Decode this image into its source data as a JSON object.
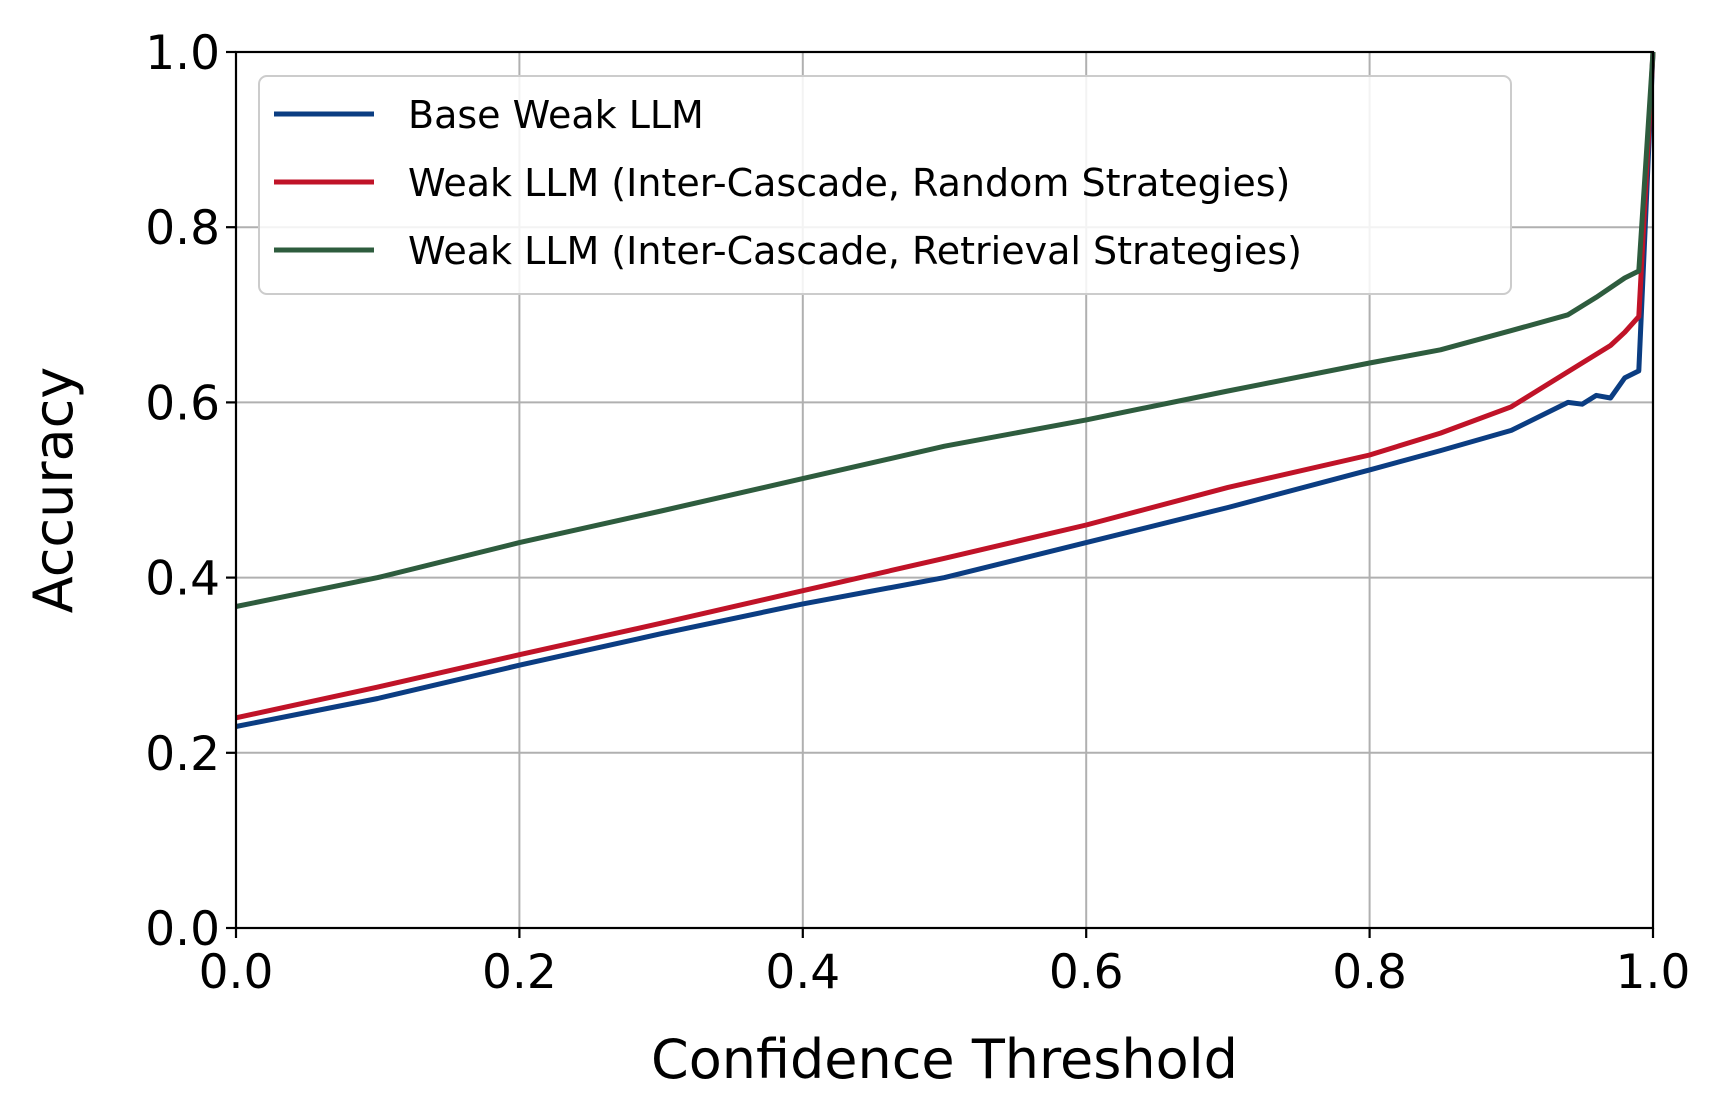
{
  "chart_data": {
    "type": "line",
    "xlabel": "Confidence Threshold",
    "ylabel": "Accuracy",
    "xlim": [
      0.0,
      1.0
    ],
    "ylim": [
      0.0,
      1.0
    ],
    "xticks": [
      "0.0",
      "0.2",
      "0.4",
      "0.6",
      "0.8",
      "1.0"
    ],
    "yticks": [
      "0.0",
      "0.2",
      "0.4",
      "0.6",
      "0.8",
      "1.0"
    ],
    "grid": true,
    "legend_position": "top-left",
    "series": [
      {
        "name": "Base Weak LLM",
        "color": "#0b3d82",
        "x": [
          0.0,
          0.1,
          0.2,
          0.3,
          0.4,
          0.5,
          0.6,
          0.7,
          0.8,
          0.85,
          0.9,
          0.94,
          0.95,
          0.96,
          0.97,
          0.98,
          0.99,
          1.0
        ],
        "y": [
          0.23,
          0.262,
          0.3,
          0.336,
          0.37,
          0.4,
          0.44,
          0.48,
          0.523,
          0.545,
          0.568,
          0.6,
          0.598,
          0.608,
          0.605,
          0.628,
          0.636,
          1.0
        ]
      },
      {
        "name": "Weak LLM (Inter-Cascade, Random Strategies)",
        "color": "#c01328",
        "x": [
          0.0,
          0.1,
          0.2,
          0.3,
          0.4,
          0.5,
          0.6,
          0.7,
          0.8,
          0.85,
          0.9,
          0.93,
          0.95,
          0.97,
          0.98,
          0.99,
          1.0
        ],
        "y": [
          0.24,
          0.275,
          0.312,
          0.348,
          0.385,
          0.422,
          0.46,
          0.503,
          0.54,
          0.565,
          0.595,
          0.625,
          0.645,
          0.665,
          0.68,
          0.698,
          1.0
        ]
      },
      {
        "name": "Weak LLM (Inter-Cascade, Retrieval Strategies)",
        "color": "#2e5c3e",
        "x": [
          0.0,
          0.1,
          0.2,
          0.3,
          0.4,
          0.5,
          0.6,
          0.7,
          0.8,
          0.85,
          0.9,
          0.94,
          0.96,
          0.98,
          0.99,
          1.0
        ],
        "y": [
          0.367,
          0.4,
          0.44,
          0.476,
          0.513,
          0.55,
          0.58,
          0.613,
          0.645,
          0.66,
          0.682,
          0.7,
          0.72,
          0.742,
          0.75,
          1.0
        ]
      }
    ]
  }
}
